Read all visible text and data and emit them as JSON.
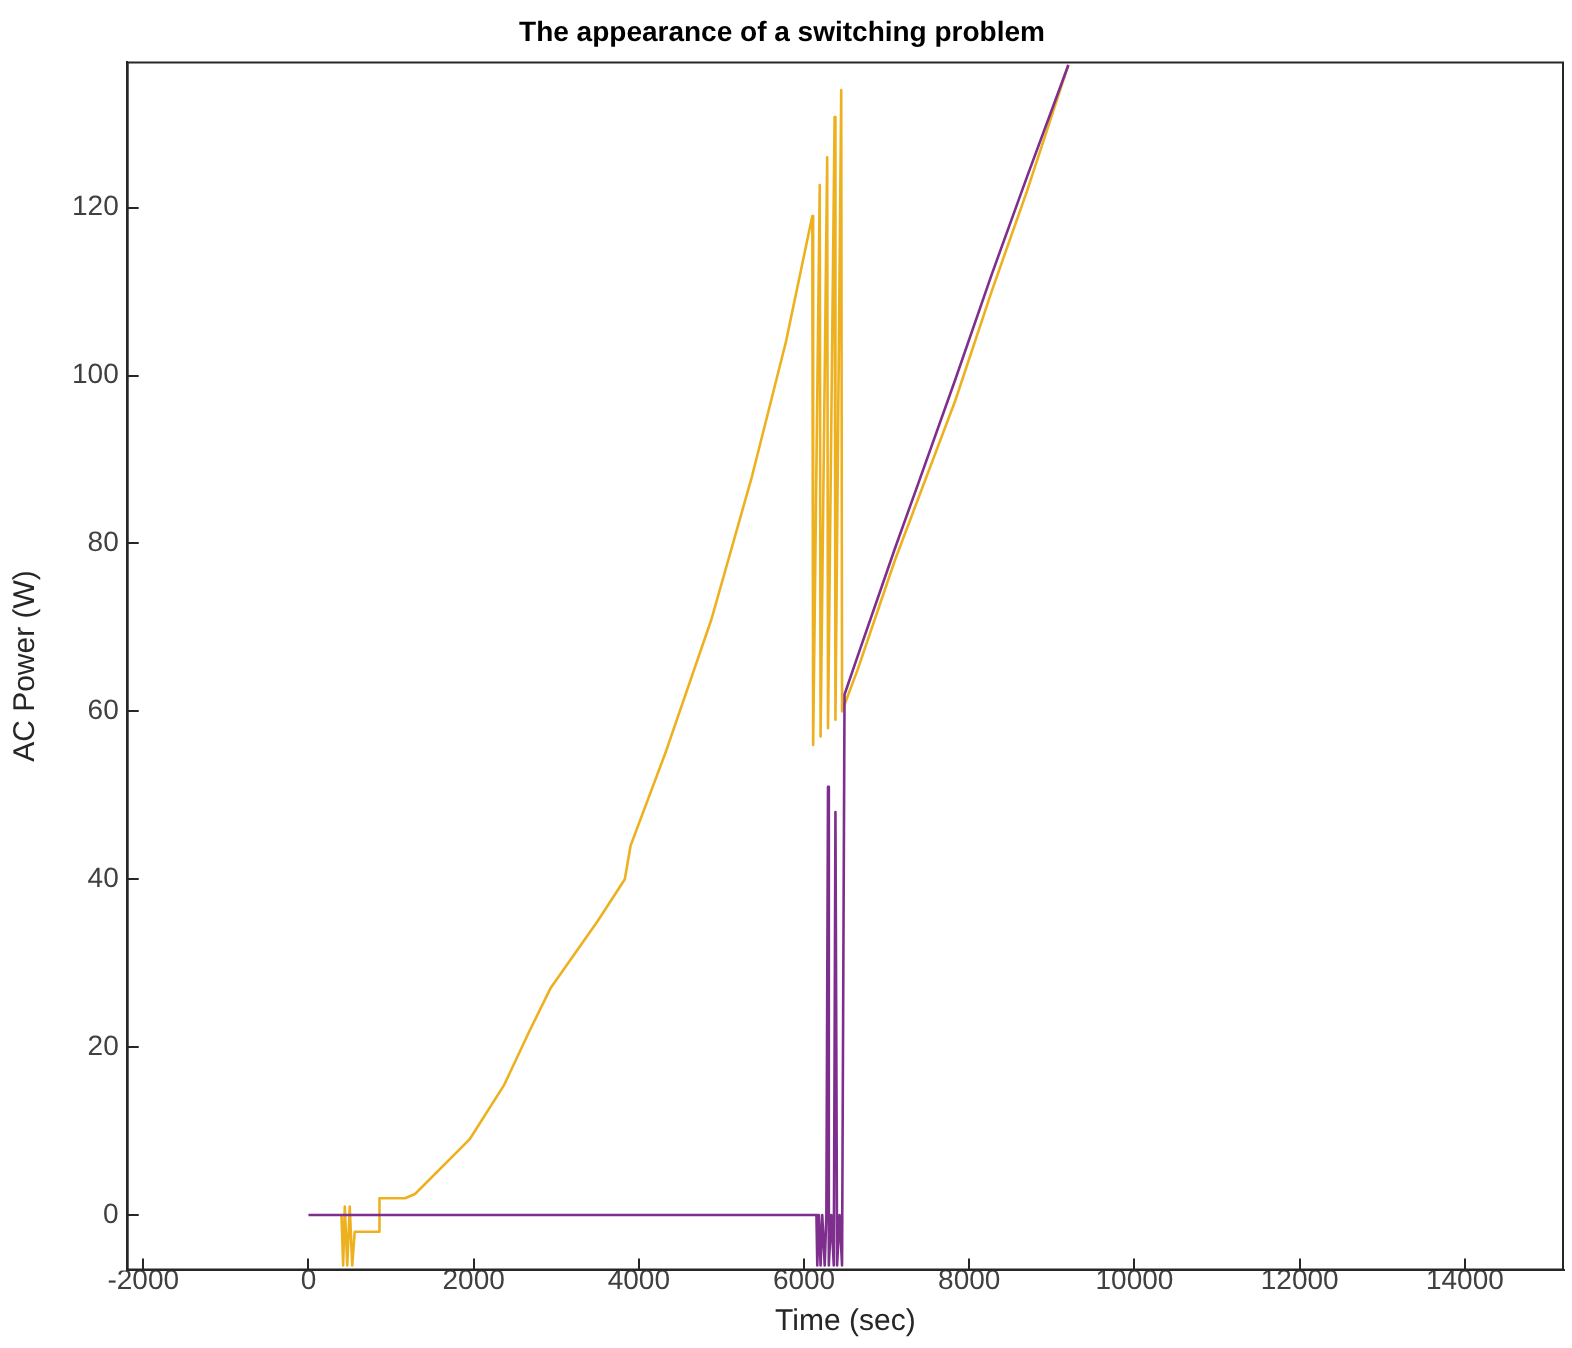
{
  "chart_data": {
    "type": "line",
    "title": "The appearance of a switching problem",
    "xlabel": "Time (sec)",
    "ylabel": "AC Power (W)",
    "xlim": [
      -2200,
      15200
    ],
    "xticks": [
      -2000,
      0,
      2000,
      4000,
      6000,
      8000,
      10000,
      12000,
      14000
    ],
    "ylim": [
      -6.6,
      137.4
    ],
    "yticks": [
      0,
      20,
      40,
      60,
      80,
      100,
      120
    ],
    "grid": false,
    "series": [
      {
        "color": "#edb120",
        "x": [
          400,
          420,
          440,
          470,
          500,
          530,
          560,
          850,
          860,
          1170,
          1290,
          1950,
          2370,
          2680,
          2930,
          3500,
          3830,
          3900,
          4320,
          4880,
          5370,
          5780,
          6100,
          6110,
          6190,
          6200,
          6280,
          6290,
          6370,
          6380,
          6450,
          6460,
          6650,
          7100,
          7830,
          8270,
          8700,
          9200
        ],
        "values": [
          0,
          -6,
          1,
          -6,
          1,
          -6,
          -2,
          -2,
          2,
          2,
          2.5,
          9,
          15.5,
          22,
          27,
          35,
          40,
          44,
          55,
          71,
          88,
          104,
          119,
          56,
          122.7,
          57,
          126,
          58,
          130.8,
          59,
          134,
          60,
          65,
          78,
          97,
          110,
          122,
          137
        ]
      },
      {
        "color": "#7e2f8e",
        "x": [
          0,
          6150,
          6160,
          6180,
          6200,
          6220,
          6250,
          6270,
          6290,
          6300,
          6330,
          6360,
          6380,
          6400,
          6430,
          6460,
          6490,
          6650,
          7100,
          7370,
          7830,
          8270,
          8700,
          9200
        ],
        "values": [
          0,
          0,
          -6,
          0,
          -6,
          0,
          -6,
          0,
          51,
          -6,
          0,
          -6,
          48,
          -6,
          0,
          -6,
          62,
          66.6,
          79.4,
          86.8,
          99.5,
          112,
          123.7,
          137
        ]
      }
    ]
  }
}
